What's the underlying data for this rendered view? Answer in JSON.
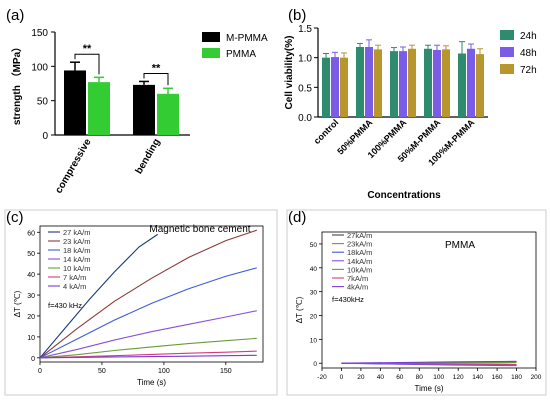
{
  "panels": {
    "a": {
      "label": "(a)"
    },
    "b": {
      "label": "(b)"
    },
    "c": {
      "label": "(c)"
    },
    "d": {
      "label": "(d)"
    }
  },
  "colors": {
    "mpmma": "#000000",
    "pmma": "#33cc33",
    "h24": "#2e8b6e",
    "h48": "#7b5ce6",
    "h72": "#b8962e"
  },
  "chart_data": [
    {
      "id": "a",
      "type": "bar",
      "categories": [
        "compressive",
        "bending"
      ],
      "series": [
        {
          "name": "M-PMMA",
          "values": [
            94,
            73
          ],
          "errors": [
            12,
            5
          ]
        },
        {
          "name": "PMMA",
          "values": [
            77,
            60
          ],
          "errors": [
            7,
            8
          ]
        }
      ],
      "ylabel": "strength （MPa）",
      "ylim": [
        0,
        150
      ],
      "yticks": [
        "0",
        "50",
        "100",
        "150"
      ],
      "annotations": [
        "**",
        "**"
      ],
      "legend": "top-right"
    },
    {
      "id": "b",
      "type": "bar",
      "categories": [
        "control",
        "50%PMMA",
        "100%PMMA",
        "50%M-PMMA",
        "100%M-PMMA"
      ],
      "series": [
        {
          "name": "24h",
          "values": [
            1.0,
            1.18,
            1.11,
            1.15,
            1.07
          ],
          "errors": [
            0.07,
            0.06,
            0.06,
            0.06,
            0.2
          ]
        },
        {
          "name": "48h",
          "values": [
            1.01,
            1.18,
            1.11,
            1.13,
            1.15
          ],
          "errors": [
            0.08,
            0.12,
            0.07,
            0.08,
            0.08
          ]
        },
        {
          "name": "72h",
          "values": [
            1.0,
            1.14,
            1.15,
            1.14,
            1.06
          ],
          "errors": [
            0.08,
            0.07,
            0.06,
            0.06,
            0.09
          ]
        }
      ],
      "xlabel": "Concentrations",
      "ylabel": "Cell viability(%)",
      "ylim": [
        0,
        1.5
      ],
      "yticks": [
        "0.0",
        "0.5",
        "1.0",
        "1.5"
      ],
      "legend": "right"
    },
    {
      "id": "c",
      "type": "line",
      "title": "Magnetic bone cement",
      "xlabel": "Time (s)",
      "ylabel": "ΔT (℃)",
      "xlim": [
        0,
        180
      ],
      "ylim": [
        -2,
        63
      ],
      "xticks": [
        "0",
        "50",
        "100",
        "150"
      ],
      "yticks": [
        "0",
        "10",
        "20",
        "30",
        "40",
        "50",
        "60"
      ],
      "note": "f=430 kHz",
      "series": [
        {
          "name": "27 kA/m",
          "color": "#1b3a7a",
          "x": [
            0,
            20,
            40,
            60,
            80,
            95
          ],
          "y": [
            0,
            14,
            28,
            41,
            53,
            59
          ]
        },
        {
          "name": "23 kA/m",
          "color": "#8b3a3a",
          "x": [
            0,
            30,
            60,
            90,
            120,
            150,
            175
          ],
          "y": [
            0,
            14,
            27,
            38,
            48,
            56,
            61
          ]
        },
        {
          "name": "18 kA/m",
          "color": "#3b5bd9",
          "x": [
            0,
            30,
            60,
            90,
            120,
            150,
            175
          ],
          "y": [
            0,
            9,
            18,
            26,
            33,
            39,
            43
          ]
        },
        {
          "name": "14 kA/m",
          "color": "#8a4fd8",
          "x": [
            0,
            30,
            60,
            90,
            120,
            150,
            175
          ],
          "y": [
            0,
            4,
            8.5,
            12.5,
            16,
            19.5,
            22.5
          ]
        },
        {
          "name": "10 kA/m",
          "color": "#6a9a3a",
          "x": [
            0,
            30,
            60,
            90,
            120,
            150,
            175
          ],
          "y": [
            0,
            1.5,
            3.5,
            5.2,
            6.8,
            8.2,
            9.3
          ]
        },
        {
          "name": "7 kA/m",
          "color": "#d33b7a",
          "x": [
            0,
            30,
            60,
            90,
            120,
            150,
            175
          ],
          "y": [
            0,
            0.5,
            1,
            1.6,
            2.2,
            2.7,
            3.2
          ]
        },
        {
          "name": "4 kA/m",
          "color": "#7a3ad8",
          "x": [
            0,
            30,
            60,
            90,
            120,
            150,
            175
          ],
          "y": [
            0,
            0.2,
            0.4,
            0.6,
            0.8,
            1.0,
            1.2
          ]
        }
      ]
    },
    {
      "id": "d",
      "type": "line",
      "title": "PMMA",
      "xlabel": "Time (s)",
      "ylabel": "ΔT (℃)",
      "xlim": [
        -20,
        200
      ],
      "ylim": [
        -2,
        55
      ],
      "xticks": [
        "-20",
        "0",
        "20",
        "40",
        "60",
        "80",
        "100",
        "120",
        "140",
        "160",
        "180",
        "200"
      ],
      "yticks": [
        "0",
        "10",
        "20",
        "30",
        "40",
        "50"
      ],
      "note": "f=430kHz",
      "series": [
        {
          "name": "27kA/m",
          "color": "#444444",
          "x": [
            0,
            60,
            120,
            180
          ],
          "y": [
            0,
            -0.2,
            -0.4,
            -0.6
          ]
        },
        {
          "name": "23kA/m",
          "color": "#c07040",
          "x": [
            0,
            60,
            120,
            180
          ],
          "y": [
            0,
            0.1,
            0.3,
            0.5
          ]
        },
        {
          "name": "18kA/m",
          "color": "#3b5bd9",
          "x": [
            0,
            60,
            120,
            180
          ],
          "y": [
            0,
            -0.4,
            -0.8,
            -1.0
          ]
        },
        {
          "name": "14kA/m",
          "color": "#8a4fd8",
          "x": [
            0,
            60,
            120,
            180
          ],
          "y": [
            0,
            -0.3,
            -0.6,
            -0.9
          ]
        },
        {
          "name": "10kA/m",
          "color": "#6a9a3a",
          "x": [
            0,
            60,
            120,
            180
          ],
          "y": [
            0,
            0.1,
            0.2,
            0.3
          ]
        },
        {
          "name": "7kA/m",
          "color": "#d33b7a",
          "x": [
            0,
            60,
            120,
            180
          ],
          "y": [
            0,
            -0.1,
            -0.3,
            -0.5
          ]
        },
        {
          "name": "4kA/m",
          "color": "#7a3ad8",
          "x": [
            0,
            60,
            120,
            180
          ],
          "y": [
            0,
            0.3,
            0.6,
            0.8
          ]
        }
      ]
    }
  ]
}
